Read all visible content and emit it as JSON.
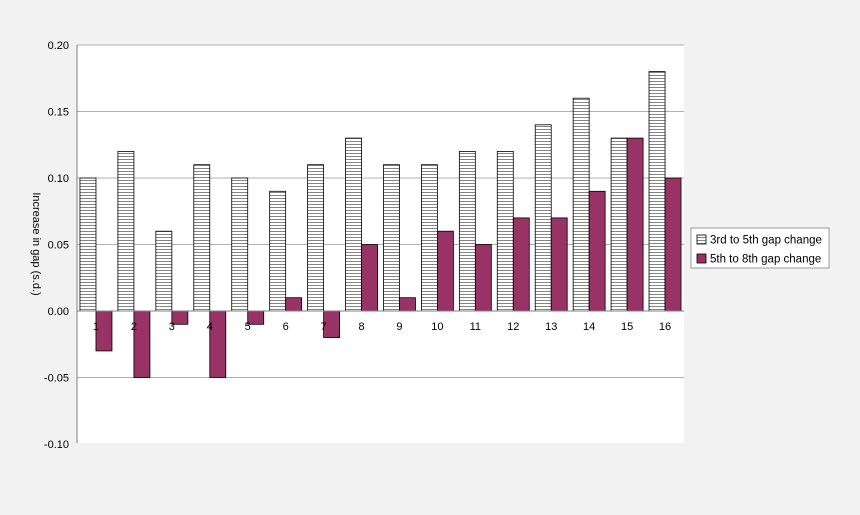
{
  "chart_data": {
    "type": "bar",
    "categories": [
      "1",
      "2",
      "3",
      "4",
      "5",
      "6",
      "7",
      "8",
      "9",
      "10",
      "11",
      "12",
      "13",
      "14",
      "15",
      "16"
    ],
    "series": [
      {
        "name": "3rd to 5th gap change",
        "values": [
          0.1,
          0.12,
          0.06,
          0.11,
          0.1,
          0.09,
          0.11,
          0.13,
          0.11,
          0.11,
          0.12,
          0.12,
          0.14,
          0.16,
          0.13,
          0.18
        ],
        "color": "#ffffff",
        "pattern": "horizontal-lines"
      },
      {
        "name": "5th to 8th gap change",
        "values": [
          -0.03,
          -0.05,
          -0.01,
          -0.05,
          -0.01,
          0.01,
          -0.02,
          0.05,
          0.01,
          0.06,
          0.05,
          0.07,
          0.07,
          0.09,
          0.13,
          0.1
        ],
        "color": "#993366"
      }
    ],
    "y_ticks": [
      "0.20",
      "0.15",
      "0.10",
      "0.05",
      "0.00",
      "-0.05",
      "-0.10"
    ],
    "y_tick_values": [
      0.2,
      0.15,
      0.1,
      0.05,
      0.0,
      -0.05,
      -0.1
    ],
    "ylim": [
      -0.1,
      0.2
    ],
    "ylabel": "Increase in gap (s.d.)",
    "title": "",
    "xlabel": "",
    "grid": true,
    "legend_position": "right"
  }
}
